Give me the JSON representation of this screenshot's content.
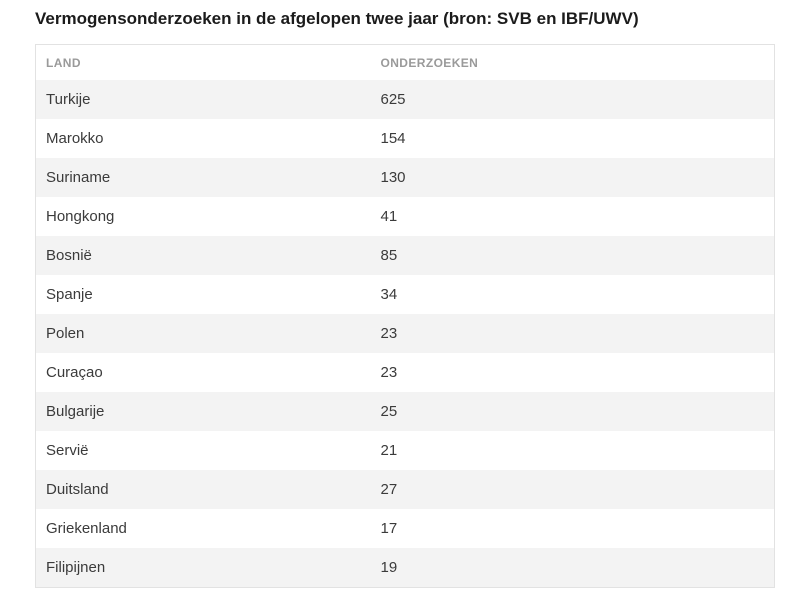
{
  "title": "Vermogensonderzoeken in de afgelopen twee jaar (bron: SVB en IBF/UWV)",
  "chart_data": {
    "type": "table",
    "title": "Vermogensonderzoeken in de afgelopen twee jaar (bron: SVB en IBF/UWV)",
    "columns": [
      "LAND",
      "ONDERZOEKEN"
    ],
    "rows": [
      {
        "land": "Turkije",
        "onderzoeken": 625
      },
      {
        "land": "Marokko",
        "onderzoeken": 154
      },
      {
        "land": "Suriname",
        "onderzoeken": 130
      },
      {
        "land": "Hongkong",
        "onderzoeken": 41
      },
      {
        "land": "Bosnië",
        "onderzoeken": 85
      },
      {
        "land": "Spanje",
        "onderzoeken": 34
      },
      {
        "land": "Polen",
        "onderzoeken": 23
      },
      {
        "land": "Curaçao",
        "onderzoeken": 23
      },
      {
        "land": "Bulgarije",
        "onderzoeken": 25
      },
      {
        "land": "Servië",
        "onderzoeken": 21
      },
      {
        "land": "Duitsland",
        "onderzoeken": 27
      },
      {
        "land": "Griekenland",
        "onderzoeken": 17
      },
      {
        "land": "Filipijnen",
        "onderzoeken": 19
      }
    ],
    "layout": {
      "row_striping": "odd-rows-shaded",
      "grid": "outer-border-only",
      "header_case": "uppercase"
    }
  },
  "colors": {
    "title_text": "#1b1b1b",
    "header_text": "#9a9a9a",
    "body_text": "#3b3b3b",
    "border": "#e2e2e2",
    "row_alt": "#f3f3f3",
    "row_base": "#ffffff"
  }
}
